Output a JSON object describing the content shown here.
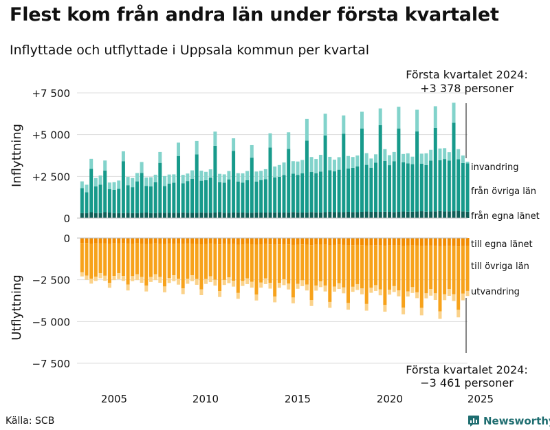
{
  "title": "Flest kom från andra län under första kvartalet",
  "subtitle": "Inflyttade och utflyttade i Uppsala kommun per kvartal",
  "source": "Källa: SCB",
  "brand": "Newsworthy",
  "chart_data": {
    "type": "bar",
    "stacked": true,
    "x_start": {
      "year": 2003,
      "quarter": 1
    },
    "x_ticks": [
      "2005",
      "2010",
      "2015",
      "2020",
      "2025"
    ],
    "y_ticks": [
      "+7 500",
      "+5 000",
      "+2 500",
      "0",
      "0",
      "−2 500",
      "−5 000",
      "−7 500"
    ],
    "ylabel_top": "Inflyttning",
    "ylabel_bottom": "Utflyttning",
    "ylim_in": [
      0,
      7500
    ],
    "ylim_out": [
      -7500,
      0
    ],
    "annotation_top": {
      "line1": "Första kvartalet 2024:",
      "line2": "+3 378 personer"
    },
    "annotation_bottom": {
      "line1": "Första kvartalet 2024:",
      "line2": "−3 461 personer"
    },
    "colors": {
      "egna_in": "#0f5f57",
      "ovriga_in": "#179a8b",
      "invandring": "#82d3cb",
      "egna_ut": "#f28c00",
      "ovriga_ut": "#f7a21b",
      "utvandring": "#fbd28a",
      "grid": "#dddddd",
      "text": "#111111"
    },
    "series_in": [
      {
        "name": "från egna länet",
        "label": "från egna länet",
        "values": [
          300,
          300,
          350,
          300,
          300,
          350,
          330,
          300,
          300,
          300,
          320,
          300,
          300,
          310,
          330,
          300,
          300,
          310,
          320,
          310,
          320,
          320,
          340,
          320,
          310,
          320,
          340,
          320,
          320,
          330,
          350,
          320,
          320,
          330,
          340,
          330,
          320,
          320,
          340,
          330,
          330,
          330,
          340,
          330,
          330,
          340,
          360,
          340,
          330,
          340,
          360,
          340,
          340,
          350,
          370,
          350,
          350,
          350,
          370,
          360,
          350,
          370,
          390,
          370,
          370,
          370,
          380,
          370,
          360,
          370,
          390,
          380,
          380,
          390,
          410,
          380,
          390,
          400,
          420,
          390,
          400,
          410,
          430,
          400,
          380
        ]
      },
      {
        "name": "från övriga län",
        "label": "från övriga län",
        "values": [
          1500,
          1250,
          2600,
          1600,
          1700,
          2500,
          1400,
          1400,
          1450,
          3100,
          1650,
          1550,
          1900,
          2400,
          1600,
          1600,
          1850,
          3000,
          1600,
          1750,
          1800,
          3400,
          1750,
          1900,
          2050,
          3500,
          1900,
          1950,
          2100,
          4000,
          1800,
          1800,
          2000,
          3700,
          1850,
          1800,
          1950,
          3300,
          1850,
          1950,
          2000,
          3900,
          2100,
          2150,
          2250,
          3800,
          2300,
          2250,
          2350,
          4300,
          2400,
          2350,
          2450,
          4600,
          2500,
          2450,
          2550,
          4700,
          2600,
          2650,
          2750,
          5000,
          2800,
          2650,
          2950,
          5200,
          3050,
          2800,
          3050,
          5000,
          2950,
          2900,
          2850,
          4800,
          2850,
          2800,
          3050,
          5000,
          3050,
          3150,
          3050,
          5300,
          3100,
          2900,
          2900
        ]
      },
      {
        "name": "invandring",
        "label": "invandring",
        "values": [
          400,
          450,
          600,
          500,
          550,
          600,
          400,
          450,
          500,
          600,
          500,
          550,
          500,
          650,
          500,
          550,
          450,
          650,
          600,
          550,
          500,
          800,
          500,
          450,
          500,
          800,
          600,
          500,
          500,
          850,
          500,
          500,
          500,
          750,
          500,
          550,
          550,
          750,
          600,
          550,
          600,
          850,
          650,
          700,
          750,
          1000,
          750,
          800,
          800,
          1300,
          900,
          850,
          1000,
          1300,
          800,
          700,
          750,
          1100,
          750,
          650,
          650,
          1000,
          700,
          550,
          500,
          1000,
          700,
          600,
          550,
          1300,
          500,
          600,
          450,
          1300,
          600,
          700,
          650,
          1300,
          700,
          650,
          500,
          1200,
          600,
          450,
          100
        ]
      }
    ],
    "series_out": [
      {
        "name": "till egna länet",
        "label": "till egna länet",
        "values": [
          300,
          300,
          330,
          320,
          310,
          310,
          330,
          320,
          310,
          320,
          340,
          330,
          320,
          330,
          350,
          330,
          320,
          330,
          350,
          340,
          330,
          340,
          360,
          340,
          330,
          350,
          370,
          350,
          340,
          350,
          380,
          360,
          350,
          360,
          390,
          370,
          360,
          370,
          390,
          370,
          360,
          380,
          400,
          380,
          370,
          380,
          410,
          390,
          380,
          390,
          420,
          400,
          390,
          400,
          430,
          410,
          400,
          410,
          440,
          420,
          410,
          420,
          450,
          430,
          420,
          430,
          460,
          440,
          430,
          440,
          470,
          450,
          440,
          450,
          480,
          460,
          450,
          460,
          490,
          470,
          460,
          470,
          500,
          480,
          470
        ]
      },
      {
        "name": "till övriga län",
        "label": "till övriga län",
        "values": [
          1750,
          1950,
          2100,
          2000,
          1800,
          1950,
          2350,
          1950,
          1800,
          1950,
          2450,
          1950,
          1850,
          2000,
          2500,
          2000,
          1850,
          2000,
          2550,
          2050,
          1900,
          2100,
          2650,
          2100,
          1900,
          2100,
          2700,
          2100,
          1950,
          2150,
          2800,
          2150,
          2000,
          2200,
          2900,
          2200,
          2050,
          2250,
          3000,
          2300,
          2050,
          2300,
          3100,
          2300,
          2100,
          2350,
          3150,
          2350,
          2150,
          2400,
          3300,
          2450,
          2200,
          2450,
          3400,
          2500,
          2300,
          2550,
          3450,
          2500,
          2350,
          2600,
          3500,
          2550,
          2400,
          2650,
          3550,
          2650,
          2450,
          2700,
          3700,
          2750,
          2500,
          2800,
          3700,
          2850,
          2600,
          2850,
          3900,
          2900,
          2600,
          2900,
          3800,
          2850,
          2700
        ]
      },
      {
        "name": "utvandring",
        "label": "utvandring",
        "values": [
          250,
          250,
          300,
          250,
          300,
          300,
          300,
          250,
          350,
          300,
          350,
          300,
          350,
          350,
          350,
          300,
          350,
          350,
          350,
          300,
          350,
          350,
          350,
          300,
          350,
          350,
          350,
          300,
          350,
          350,
          350,
          300,
          350,
          350,
          350,
          300,
          350,
          350,
          350,
          300,
          350,
          350,
          350,
          300,
          350,
          350,
          350,
          300,
          350,
          350,
          350,
          300,
          350,
          350,
          350,
          300,
          350,
          350,
          400,
          300,
          350,
          350,
          400,
          300,
          350,
          350,
          400,
          300,
          350,
          350,
          400,
          300,
          350,
          350,
          450,
          300,
          400,
          400,
          450,
          350,
          400,
          400,
          450,
          400,
          300
        ]
      }
    ]
  }
}
